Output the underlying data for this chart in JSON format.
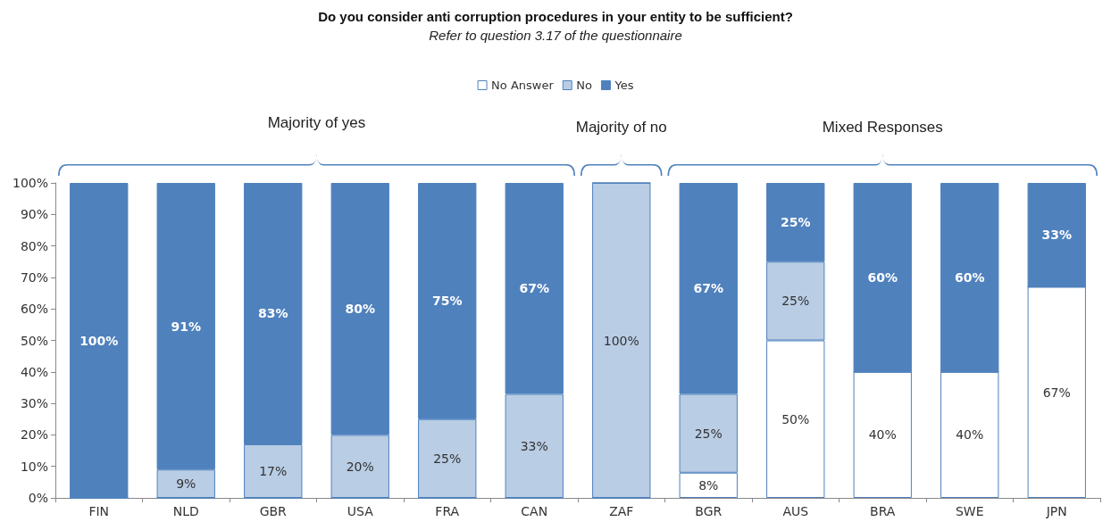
{
  "chart_data": {
    "type": "bar",
    "title": "Do you consider anti corruption procedures in your entity to be sufficient?",
    "subtitle": "Refer to question 3.17 of the questionnaire",
    "categories": [
      "FIN",
      "NLD",
      "GBR",
      "USA",
      "FRA",
      "CAN",
      "ZAF",
      "BGR",
      "AUS",
      "BRA",
      "SWE",
      "JPN"
    ],
    "stacked": true,
    "series": [
      {
        "name": "No Answer",
        "color": "#ffffff",
        "values": [
          0,
          0,
          0,
          0,
          0,
          0,
          0,
          8,
          50,
          40,
          40,
          67
        ],
        "value_labels": [
          null,
          null,
          null,
          null,
          null,
          null,
          null,
          "8%",
          "50%",
          "40%",
          "40%",
          "67%"
        ]
      },
      {
        "name": "No",
        "color": "#b9cde5",
        "values": [
          0,
          9,
          17,
          20,
          25,
          33,
          100,
          25,
          25,
          0,
          0,
          0
        ],
        "value_labels": [
          null,
          "9%",
          "17%",
          "20%",
          "25%",
          "33%",
          "100%",
          "25%",
          "25%",
          null,
          null,
          null
        ]
      },
      {
        "name": "Yes",
        "color": "#4f81bd",
        "values": [
          100,
          91,
          83,
          80,
          75,
          67,
          0,
          67,
          25,
          60,
          60,
          33
        ],
        "value_labels": [
          "100%",
          "91%",
          "83%",
          "80%",
          "75%",
          "67%",
          null,
          "67%",
          "25%",
          "60%",
          "60%",
          "33%"
        ]
      }
    ],
    "ylim": [
      0,
      100
    ],
    "yticks": [
      {
        "value": 0,
        "label": "0%"
      },
      {
        "value": 10,
        "label": "10%"
      },
      {
        "value": 20,
        "label": "20%"
      },
      {
        "value": 30,
        "label": "30%"
      },
      {
        "value": 40,
        "label": "40%"
      },
      {
        "value": 50,
        "label": "50%"
      },
      {
        "value": 60,
        "label": "60%"
      },
      {
        "value": 70,
        "label": "70%"
      },
      {
        "value": 80,
        "label": "80%"
      },
      {
        "value": 90,
        "label": "90%"
      },
      {
        "value": 100,
        "label": "100%"
      }
    ],
    "grid": false,
    "legend": "top",
    "annotations": [
      "Majority of yes",
      "Majority of no",
      "Mixed Responses"
    ]
  }
}
